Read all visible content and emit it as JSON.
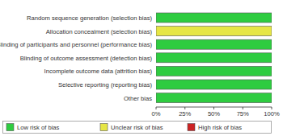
{
  "chart_data": {
    "type": "bar",
    "orientation": "horizontal",
    "stacked": true,
    "categories": [
      "Random sequence generation (selection bias)",
      "Allocation concealment (selection bias)",
      "Blinding of participants and personnel (performance bias)",
      "Blinding of outcome assessment (detection bias)",
      "Incomplete outcome data (attrition bias)",
      "Selective reporting (reporting bias)",
      "Other bias"
    ],
    "series": [
      {
        "name": "Low risk of bias",
        "color": "#2ecc40",
        "values": [
          100,
          0,
          100,
          100,
          100,
          100,
          100
        ]
      },
      {
        "name": "Unclear risk of bias",
        "color": "#e6e645",
        "values": [
          0,
          100,
          0,
          0,
          0,
          0,
          0
        ]
      },
      {
        "name": "High risk of bias",
        "color": "#cc2222",
        "values": [
          0,
          0,
          0,
          0,
          0,
          0,
          0
        ]
      }
    ],
    "xlim": [
      0,
      100
    ],
    "xticks": [
      {
        "value": 0,
        "label": "0%"
      },
      {
        "value": 25,
        "label": "25%"
      },
      {
        "value": 50,
        "label": "50%"
      },
      {
        "value": 75,
        "label": "75%"
      },
      {
        "value": 100,
        "label": "100%"
      }
    ],
    "legend": "bottom"
  }
}
